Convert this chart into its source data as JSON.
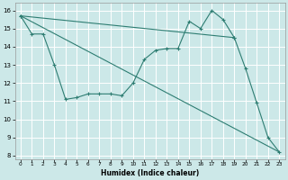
{
  "xlabel": "Humidex (Indice chaleur)",
  "background_color": "#cce8e8",
  "grid_color": "#ffffff",
  "line_color": "#2e7d72",
  "xlim": [
    0,
    23
  ],
  "ylim": [
    7.8,
    16.4
  ],
  "xticks": [
    0,
    1,
    2,
    3,
    4,
    5,
    6,
    7,
    8,
    9,
    10,
    11,
    12,
    13,
    14,
    15,
    16,
    17,
    18,
    19,
    20,
    21,
    22,
    23
  ],
  "yticks": [
    8,
    9,
    10,
    11,
    12,
    13,
    14,
    15,
    16
  ],
  "line1_x": [
    0,
    1,
    2,
    3,
    4,
    5,
    6,
    7,
    8,
    9,
    10,
    11,
    12,
    13,
    14,
    15,
    16,
    17,
    18,
    19,
    20,
    21,
    22,
    23
  ],
  "line1_y": [
    15.7,
    14.7,
    14.7,
    13.0,
    11.1,
    11.2,
    11.4,
    11.4,
    11.4,
    11.3,
    12.0,
    13.3,
    13.8,
    13.9,
    13.9,
    15.4,
    15.0,
    16.0,
    15.5,
    14.5,
    12.8,
    10.9,
    9.0,
    8.2
  ],
  "line2_x": [
    0,
    19
  ],
  "line2_y": [
    15.7,
    14.5
  ],
  "line3_x": [
    0,
    23
  ],
  "line3_y": [
    15.7,
    8.2
  ]
}
